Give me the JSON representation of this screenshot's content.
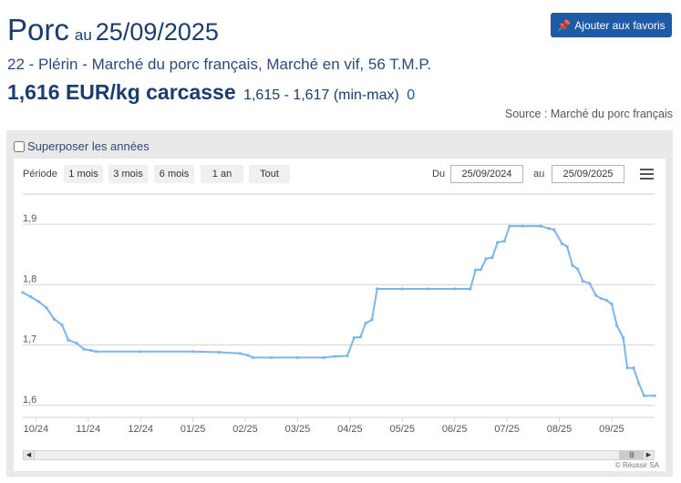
{
  "header": {
    "product": "Porc",
    "date_prefix": "au",
    "date": "25/09/2025",
    "favorite_button": "Ajouter aux favoris",
    "market": "22 - Plérin - Marché du porc français, Marché en vif, 56 T.M.P.",
    "price": "1,616 EUR/kg carcasse",
    "range": "1,615 - 1,617 (min-max)",
    "variation": "0",
    "source": "Source : Marché du porc français"
  },
  "controls": {
    "overlay_label": "Superposer les années",
    "period_label": "Période",
    "periods": [
      "1 mois",
      "3 mois",
      "6 mois",
      "1 an",
      "Tout"
    ],
    "from_label": "Du",
    "from_date": "25/09/2024",
    "to_label": "au",
    "to_date": "25/09/2025"
  },
  "colors": {
    "line": "#7cb5ec",
    "accent": "#1f5aa6",
    "title": "#1a3c6e"
  },
  "credits": "© Réussir SA",
  "chart_data": {
    "type": "line",
    "ylim": [
      1.58,
      1.95
    ],
    "y_ticks": [
      1.6,
      1.7,
      1.8,
      1.9
    ],
    "x_ticks": [
      "10/24",
      "11/24",
      "12/24",
      "01/25",
      "02/25",
      "03/25",
      "04/25",
      "05/25",
      "06/25",
      "07/25",
      "08/25",
      "09/25"
    ],
    "x_range": [
      -0.25,
      11.82
    ],
    "grid": true,
    "legend": "none",
    "series": [
      {
        "points": [
          [
            -0.25,
            1.787
          ],
          [
            -0.1,
            1.78
          ],
          [
            0.05,
            1.772
          ],
          [
            0.2,
            1.762
          ],
          [
            0.35,
            1.743
          ],
          [
            0.5,
            1.733
          ],
          [
            0.62,
            1.708
          ],
          [
            0.78,
            1.703
          ],
          [
            0.92,
            1.693
          ],
          [
            1.05,
            1.691
          ],
          [
            1.15,
            1.689
          ],
          [
            2.0,
            1.689
          ],
          [
            3.0,
            1.689
          ],
          [
            3.5,
            1.688
          ],
          [
            3.9,
            1.686
          ],
          [
            4.05,
            1.683
          ],
          [
            4.15,
            1.679
          ],
          [
            4.5,
            1.679
          ],
          [
            5.0,
            1.679
          ],
          [
            5.5,
            1.679
          ],
          [
            5.7,
            1.681
          ],
          [
            5.95,
            1.682
          ],
          [
            6.08,
            1.712
          ],
          [
            6.2,
            1.713
          ],
          [
            6.3,
            1.736
          ],
          [
            6.42,
            1.742
          ],
          [
            6.52,
            1.793
          ],
          [
            7.0,
            1.793
          ],
          [
            7.5,
            1.793
          ],
          [
            8.0,
            1.793
          ],
          [
            8.3,
            1.793
          ],
          [
            8.4,
            1.824
          ],
          [
            8.5,
            1.825
          ],
          [
            8.6,
            1.843
          ],
          [
            8.72,
            1.845
          ],
          [
            8.82,
            1.87
          ],
          [
            8.95,
            1.872
          ],
          [
            9.05,
            1.897
          ],
          [
            9.3,
            1.897
          ],
          [
            9.65,
            1.897
          ],
          [
            9.8,
            1.893
          ],
          [
            9.9,
            1.891
          ],
          [
            10.05,
            1.868
          ],
          [
            10.15,
            1.863
          ],
          [
            10.25,
            1.832
          ],
          [
            10.35,
            1.826
          ],
          [
            10.45,
            1.806
          ],
          [
            10.58,
            1.802
          ],
          [
            10.7,
            1.782
          ],
          [
            10.8,
            1.777
          ],
          [
            10.9,
            1.774
          ],
          [
            11.0,
            1.768
          ],
          [
            11.1,
            1.732
          ],
          [
            11.22,
            1.712
          ],
          [
            11.3,
            1.662
          ],
          [
            11.42,
            1.662
          ],
          [
            11.52,
            1.636
          ],
          [
            11.62,
            1.616
          ],
          [
            11.82,
            1.616
          ]
        ]
      }
    ]
  }
}
